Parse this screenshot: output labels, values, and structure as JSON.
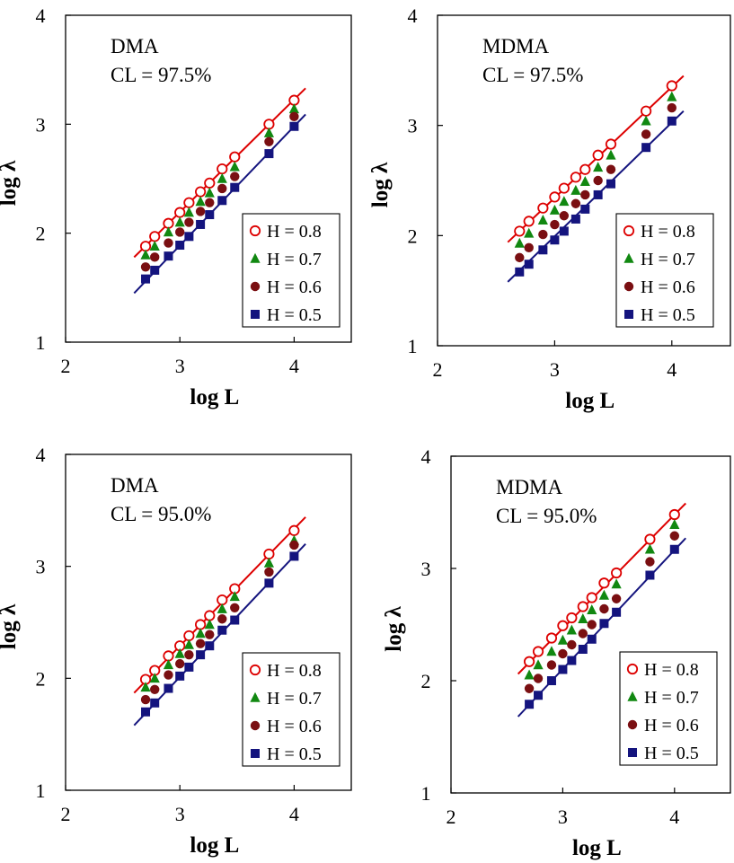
{
  "chart_data": [
    {
      "type": "scatter",
      "annotation": [
        "DMA",
        "CL = 97.5%"
      ],
      "xlabel": "log L",
      "ylabel": "log λ",
      "xlim": [
        2,
        4.5
      ],
      "ylim": [
        1,
        4
      ],
      "xticks": [
        2,
        3,
        4
      ],
      "yticks": [
        1,
        2,
        3,
        4
      ],
      "legend_position": "lower-right",
      "x": [
        2.7,
        2.78,
        2.9,
        3.0,
        3.08,
        3.18,
        3.26,
        3.37,
        3.48,
        3.78,
        4.0
      ],
      "series": [
        {
          "name": "H = 0.8",
          "marker": "open-circle",
          "color": "#dd0000",
          "values": [
            1.88,
            1.97,
            2.09,
            2.19,
            2.28,
            2.38,
            2.46,
            2.59,
            2.7,
            3.0,
            3.22
          ]
        },
        {
          "name": "H = 0.7",
          "marker": "triangle",
          "color": "#118811",
          "values": [
            1.8,
            1.88,
            2.01,
            2.1,
            2.19,
            2.29,
            2.37,
            2.5,
            2.61,
            2.92,
            3.14
          ]
        },
        {
          "name": "H = 0.6",
          "marker": "filled-circle",
          "color": "#7a0f12",
          "values": [
            1.69,
            1.78,
            1.91,
            2.01,
            2.1,
            2.2,
            2.28,
            2.41,
            2.52,
            2.84,
            3.07
          ]
        },
        {
          "name": "H = 0.5",
          "marker": "square",
          "color": "#14147e",
          "values": [
            1.58,
            1.66,
            1.79,
            1.89,
            1.97,
            2.08,
            2.17,
            2.3,
            2.42,
            2.73,
            2.98
          ]
        }
      ],
      "fit_lines": [
        {
          "color": "#dd0000",
          "x": [
            2.6,
            4.1
          ],
          "y": [
            1.78,
            3.33
          ]
        },
        {
          "color": "#14147e",
          "x": [
            2.6,
            4.1
          ],
          "y": [
            1.45,
            3.09
          ]
        }
      ]
    },
    {
      "type": "scatter",
      "annotation": [
        "MDMA",
        "CL = 97.5%"
      ],
      "xlabel": "log L",
      "ylabel": "log λ",
      "xlim": [
        2,
        4.5
      ],
      "ylim": [
        1,
        4
      ],
      "xticks": [
        2,
        3,
        4
      ],
      "yticks": [
        1,
        2,
        3,
        4
      ],
      "legend_position": "lower-right",
      "x": [
        2.7,
        2.78,
        2.9,
        3.0,
        3.08,
        3.18,
        3.26,
        3.37,
        3.48,
        3.78,
        4.0
      ],
      "series": [
        {
          "name": "H = 0.8",
          "marker": "open-circle",
          "color": "#dd0000",
          "values": [
            2.04,
            2.13,
            2.25,
            2.35,
            2.43,
            2.53,
            2.6,
            2.73,
            2.83,
            3.13,
            3.36
          ]
        },
        {
          "name": "H = 0.7",
          "marker": "triangle",
          "color": "#118811",
          "values": [
            1.93,
            2.02,
            2.14,
            2.23,
            2.31,
            2.41,
            2.49,
            2.62,
            2.73,
            3.04,
            3.26
          ]
        },
        {
          "name": "H = 0.6",
          "marker": "filled-circle",
          "color": "#7a0f12",
          "values": [
            1.8,
            1.89,
            2.01,
            2.1,
            2.18,
            2.29,
            2.37,
            2.5,
            2.6,
            2.92,
            3.16
          ]
        },
        {
          "name": "H = 0.5",
          "marker": "square",
          "color": "#14147e",
          "values": [
            1.67,
            1.74,
            1.87,
            1.96,
            2.04,
            2.15,
            2.24,
            2.37,
            2.47,
            2.8,
            3.04
          ]
        }
      ],
      "fit_lines": [
        {
          "color": "#dd0000",
          "x": [
            2.6,
            4.1
          ],
          "y": [
            1.94,
            3.45
          ]
        },
        {
          "color": "#14147e",
          "x": [
            2.6,
            4.1
          ],
          "y": [
            1.58,
            3.13
          ]
        }
      ]
    },
    {
      "type": "scatter",
      "annotation": [
        "DMA",
        "CL = 95.0%"
      ],
      "xlabel": "log L",
      "ylabel": "log λ",
      "xlim": [
        2,
        4.5
      ],
      "ylim": [
        1,
        4
      ],
      "xticks": [
        2,
        3,
        4
      ],
      "yticks": [
        1,
        2,
        3,
        4
      ],
      "legend_position": "lower-right",
      "x": [
        2.7,
        2.78,
        2.9,
        3.0,
        3.08,
        3.18,
        3.26,
        3.37,
        3.48,
        3.78,
        4.0
      ],
      "series": [
        {
          "name": "H = 0.8",
          "marker": "open-circle",
          "color": "#dd0000",
          "values": [
            1.99,
            2.07,
            2.2,
            2.29,
            2.38,
            2.48,
            2.56,
            2.7,
            2.8,
            3.11,
            3.32
          ]
        },
        {
          "name": "H = 0.7",
          "marker": "triangle",
          "color": "#118811",
          "values": [
            1.92,
            2.0,
            2.12,
            2.22,
            2.3,
            2.4,
            2.48,
            2.62,
            2.73,
            3.03,
            3.23
          ]
        },
        {
          "name": "H = 0.6",
          "marker": "filled-circle",
          "color": "#7a0f12",
          "values": [
            1.81,
            1.9,
            2.03,
            2.13,
            2.21,
            2.31,
            2.39,
            2.53,
            2.63,
            2.95,
            3.19
          ]
        },
        {
          "name": "H = 0.5",
          "marker": "square",
          "color": "#14147e",
          "values": [
            1.7,
            1.78,
            1.91,
            2.02,
            2.1,
            2.21,
            2.29,
            2.43,
            2.52,
            2.85,
            3.09
          ]
        }
      ],
      "fit_lines": [
        {
          "color": "#dd0000",
          "x": [
            2.6,
            4.1
          ],
          "y": [
            1.87,
            3.44
          ]
        },
        {
          "color": "#14147e",
          "x": [
            2.6,
            4.1
          ],
          "y": [
            1.58,
            3.2
          ]
        }
      ]
    },
    {
      "type": "scatter",
      "annotation": [
        "MDMA",
        "CL = 95.0%"
      ],
      "xlabel": "log L",
      "ylabel": "log λ",
      "xlim": [
        2,
        4.5
      ],
      "ylim": [
        1,
        4
      ],
      "xticks": [
        2,
        3,
        4
      ],
      "yticks": [
        1,
        2,
        3,
        4
      ],
      "legend_position": "lower-right",
      "x": [
        2.7,
        2.78,
        2.9,
        3.0,
        3.08,
        3.18,
        3.26,
        3.37,
        3.48,
        3.78,
        4.0
      ],
      "series": [
        {
          "name": "H = 0.8",
          "marker": "open-circle",
          "color": "#dd0000",
          "values": [
            2.17,
            2.26,
            2.38,
            2.49,
            2.56,
            2.66,
            2.74,
            2.87,
            2.96,
            3.26,
            3.48
          ]
        },
        {
          "name": "H = 0.7",
          "marker": "triangle",
          "color": "#118811",
          "values": [
            2.05,
            2.14,
            2.26,
            2.36,
            2.45,
            2.55,
            2.63,
            2.76,
            2.86,
            3.17,
            3.39
          ]
        },
        {
          "name": "H = 0.6",
          "marker": "filled-circle",
          "color": "#7a0f12",
          "values": [
            1.93,
            2.02,
            2.14,
            2.24,
            2.32,
            2.42,
            2.5,
            2.64,
            2.73,
            3.06,
            3.29
          ]
        },
        {
          "name": "H = 0.5",
          "marker": "square",
          "color": "#14147e",
          "values": [
            1.79,
            1.87,
            2.0,
            2.1,
            2.18,
            2.28,
            2.37,
            2.51,
            2.61,
            2.94,
            3.17
          ]
        }
      ],
      "fit_lines": [
        {
          "color": "#dd0000",
          "x": [
            2.6,
            4.1
          ],
          "y": [
            2.06,
            3.58
          ]
        },
        {
          "color": "#14147e",
          "x": [
            2.6,
            4.1
          ],
          "y": [
            1.68,
            3.27
          ]
        }
      ]
    }
  ]
}
